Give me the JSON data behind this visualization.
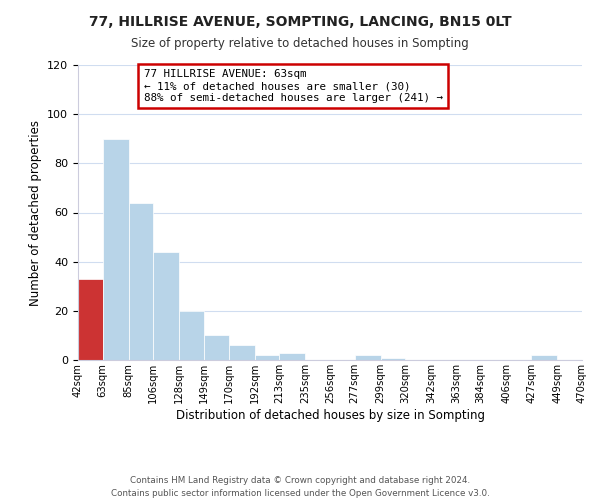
{
  "title": "77, HILLRISE AVENUE, SOMPTING, LANCING, BN15 0LT",
  "subtitle": "Size of property relative to detached houses in Sompting",
  "xlabel": "Distribution of detached houses by size in Sompting",
  "ylabel": "Number of detached properties",
  "bar_edges": [
    42,
    63,
    85,
    106,
    128,
    149,
    170,
    192,
    213,
    235,
    256,
    277,
    299,
    320,
    342,
    363,
    384,
    406,
    427,
    449,
    470
  ],
  "bar_heights": [
    33,
    90,
    64,
    44,
    20,
    10,
    6,
    2,
    3,
    0,
    0,
    2,
    1,
    0,
    0,
    0,
    0,
    0,
    2,
    0
  ],
  "bar_labels": [
    "42sqm",
    "63sqm",
    "85sqm",
    "106sqm",
    "128sqm",
    "149sqm",
    "170sqm",
    "192sqm",
    "213sqm",
    "235sqm",
    "256sqm",
    "277sqm",
    "299sqm",
    "320sqm",
    "342sqm",
    "363sqm",
    "384sqm",
    "406sqm",
    "427sqm",
    "449sqm",
    "470sqm"
  ],
  "highlight_bin": 0,
  "bar_color_normal": "#b8d4e8",
  "bar_color_highlight": "#cc3333",
  "ylim": [
    0,
    120
  ],
  "yticks": [
    0,
    20,
    40,
    60,
    80,
    100,
    120
  ],
  "annotation_line1": "77 HILLRISE AVENUE: 63sqm",
  "annotation_line2": "← 11% of detached houses are smaller (30)",
  "annotation_line3": "88% of semi-detached houses are larger (241) →",
  "annotation_box_color": "#ffffff",
  "annotation_box_edge_color": "#cc0000",
  "footer_line1": "Contains HM Land Registry data © Crown copyright and database right 2024.",
  "footer_line2": "Contains public sector information licensed under the Open Government Licence v3.0.",
  "bg_color": "#ffffff",
  "grid_color": "#d0ddf0"
}
